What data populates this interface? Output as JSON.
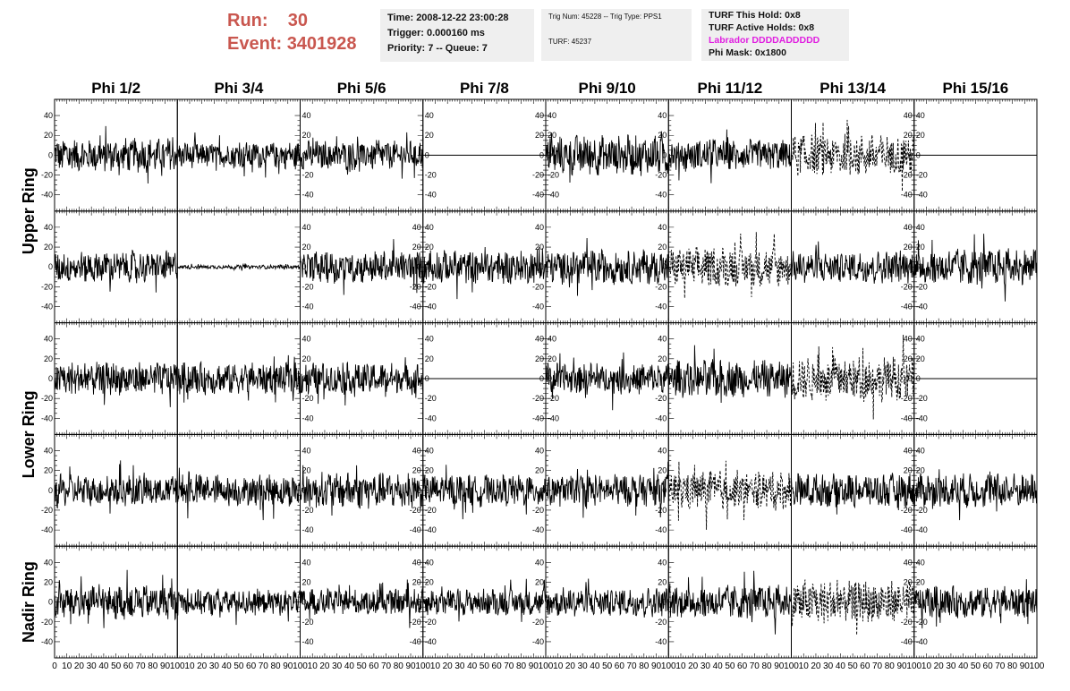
{
  "header": {
    "run_label": "Run:",
    "run_value": "30",
    "event_label": "Event:",
    "event_value": "3401928",
    "time": "Time: 2008-12-22 23:00:28",
    "trigger": "Trigger: 0.000160 ms",
    "priority": "Priority: 7 -- Queue: 7",
    "trig_num": "Trig Num: 45228 -- Trig Type: PPS1",
    "turf": "TURF: 45237",
    "turf_hold": "TURF This Hold: 0x8",
    "turf_active": "TURF Active Holds: 0x8",
    "labrador": "Labrador DDDDADDDDD",
    "phi_mask": "Phi Mask: 0x1800",
    "labrador_color": "#e020e0",
    "run_color": "#c9574f"
  },
  "chart_data": {
    "type": "line",
    "layout": "grid",
    "columns": [
      "Phi 1/2",
      "Phi 3/4",
      "Phi 5/6",
      "Phi 7/8",
      "Phi 9/10",
      "Phi 11/12",
      "Phi 13/14",
      "Phi 15/16"
    ],
    "rows": [
      "Upper Ring",
      "Lower Ring",
      "Nadir Ring"
    ],
    "panel_rows": [
      {
        "ring": "Upper Ring",
        "panels": [
          {
            "style": "solid",
            "amplitude": 13,
            "y_axis": "left"
          },
          {
            "style": "solid",
            "amplitude": 10,
            "y_axis": "right"
          },
          {
            "style": "solid",
            "amplitude": 11,
            "y_axis": "right"
          },
          {
            "style": "flat",
            "amplitude": 0,
            "y_axis": "right"
          },
          {
            "style": "solid",
            "amplitude": 15,
            "y_axis": "left"
          },
          {
            "style": "solid",
            "amplitude": 12,
            "y_axis": "left"
          },
          {
            "style": "dashed",
            "amplitude": 16,
            "y_axis": "right"
          },
          {
            "style": "flat",
            "amplitude": 0,
            "y_axis": "left"
          }
        ]
      },
      {
        "ring": "Upper Ring",
        "panels": [
          {
            "style": "solid",
            "amplitude": 12,
            "y_axis": "left"
          },
          {
            "style": "solid",
            "amplitude": 1.5,
            "y_axis": "right"
          },
          {
            "style": "solid",
            "amplitude": 12,
            "y_axis": "right"
          },
          {
            "style": "solid",
            "amplitude": 13,
            "y_axis": "left"
          },
          {
            "style": "solid",
            "amplitude": 13,
            "y_axis": "left"
          },
          {
            "style": "dashed",
            "amplitude": 15,
            "y_axis": "left"
          },
          {
            "style": "solid",
            "amplitude": 12,
            "y_axis": "right"
          },
          {
            "style": "solid",
            "amplitude": 14,
            "y_axis": "left"
          }
        ]
      },
      {
        "ring": "Lower Ring",
        "panels": [
          {
            "style": "solid",
            "amplitude": 13,
            "y_axis": "left"
          },
          {
            "style": "solid",
            "amplitude": 12,
            "y_axis": "right"
          },
          {
            "style": "solid",
            "amplitude": 12,
            "y_axis": "right"
          },
          {
            "style": "flat",
            "amplitude": 0,
            "y_axis": "right"
          },
          {
            "style": "solid",
            "amplitude": 12,
            "y_axis": "left"
          },
          {
            "style": "solid",
            "amplitude": 14,
            "y_axis": "left"
          },
          {
            "style": "dashed",
            "amplitude": 17,
            "y_axis": "right"
          },
          {
            "style": "flat",
            "amplitude": 0,
            "y_axis": "left"
          }
        ]
      },
      {
        "ring": "Lower Ring",
        "panels": [
          {
            "style": "solid",
            "amplitude": 12,
            "y_axis": "left"
          },
          {
            "style": "solid",
            "amplitude": 12,
            "y_axis": "right"
          },
          {
            "style": "solid",
            "amplitude": 14,
            "y_axis": "right"
          },
          {
            "style": "solid",
            "amplitude": 12,
            "y_axis": "left"
          },
          {
            "style": "solid",
            "amplitude": 12,
            "y_axis": "left"
          },
          {
            "style": "dashed",
            "amplitude": 15,
            "y_axis": "left"
          },
          {
            "style": "solid",
            "amplitude": 13,
            "y_axis": "right"
          },
          {
            "style": "solid",
            "amplitude": 13,
            "y_axis": "left"
          }
        ]
      },
      {
        "ring": "Nadir Ring",
        "panels": [
          {
            "style": "solid",
            "amplitude": 13,
            "y_axis": "left"
          },
          {
            "style": "solid",
            "amplitude": 10,
            "y_axis": "right"
          },
          {
            "style": "solid",
            "amplitude": 10,
            "y_axis": "right"
          },
          {
            "style": "solid",
            "amplitude": 10,
            "y_axis": "left"
          },
          {
            "style": "solid",
            "amplitude": 11,
            "y_axis": "left"
          },
          {
            "style": "solid",
            "amplitude": 13,
            "y_axis": "left"
          },
          {
            "style": "dashed",
            "amplitude": 17,
            "y_axis": "right"
          },
          {
            "style": "solid",
            "amplitude": 12,
            "y_axis": "left"
          }
        ]
      }
    ],
    "x_range": [
      0,
      100
    ],
    "x_ticks": [
      "0",
      "10",
      "20",
      "30",
      "40",
      "50",
      "60",
      "70",
      "80",
      "90",
      "100"
    ],
    "y_range": [
      -50,
      50
    ],
    "y_ticks": [
      "-40",
      "-20",
      "0",
      "20",
      "40"
    ],
    "points_per_trace": 260
  }
}
